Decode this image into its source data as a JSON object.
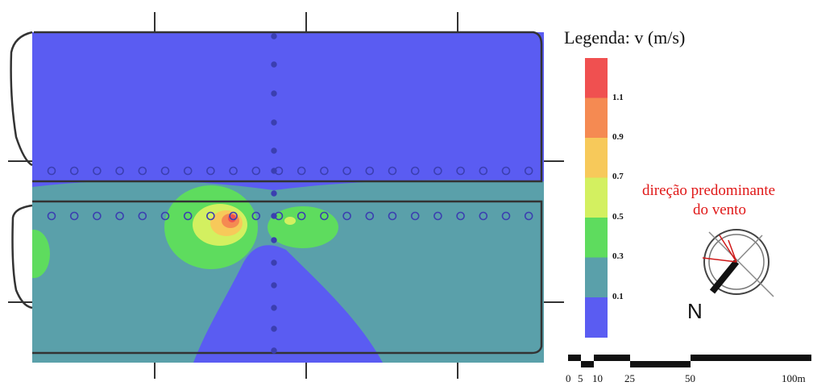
{
  "legend": {
    "title": "Legenda: v (m/s)",
    "labels": [
      "1.1",
      "0.9",
      "0.7",
      "0.5",
      "0.3",
      "0.1"
    ],
    "colors": [
      "#f05050",
      "#f58a52",
      "#f7c95a",
      "#d3f060",
      "#5edc5e",
      "#5aa0aa",
      "#5a5cf2"
    ]
  },
  "wind": {
    "note_line1": "direção predominante",
    "note_line2": "do vento",
    "north_label": "N"
  },
  "scale_bar": {
    "labels": [
      "0",
      "5",
      "10",
      "25",
      "50",
      "100m"
    ]
  },
  "map": {
    "colors": {
      "low": "#5a5cf2",
      "teal": "#5aa0aa",
      "green": "#5edc5e",
      "yellow_green": "#d3f060",
      "yellow": "#f7c95a",
      "orange": "#f58a52",
      "red": "#f05050",
      "point": "#3b3fb0"
    }
  }
}
